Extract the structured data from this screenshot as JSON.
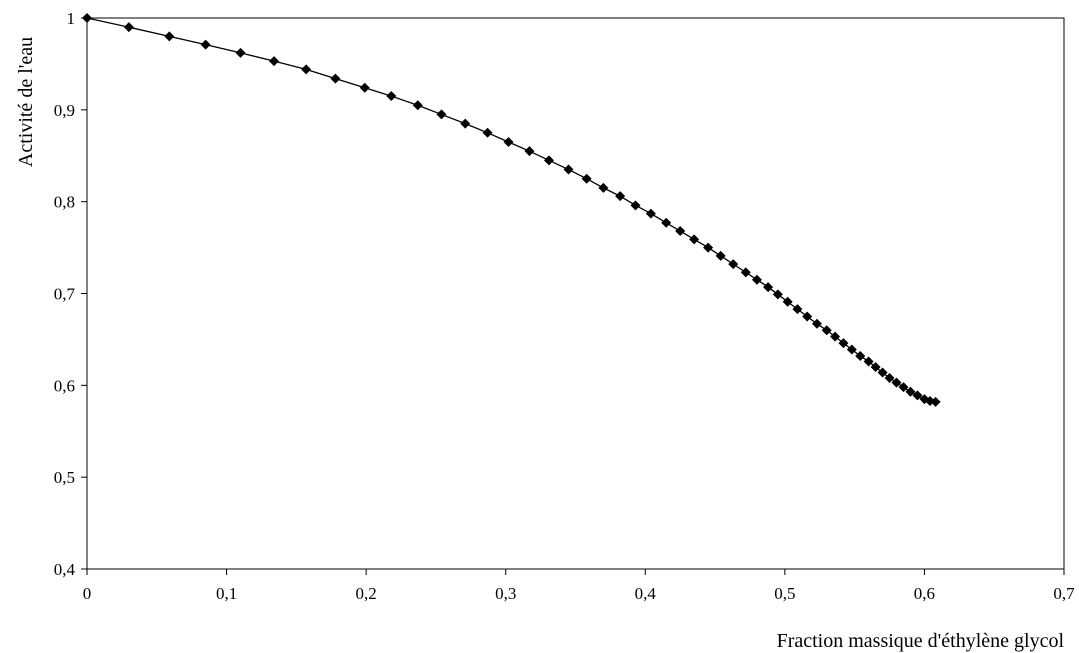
{
  "chart_data": {
    "type": "line",
    "title": "",
    "xlabel": "Fraction massique d'éthylène glycol",
    "ylabel": "Activité de l'eau",
    "xlim": [
      0,
      0.7
    ],
    "ylim": [
      0.4,
      1
    ],
    "x_ticks": [
      "0",
      "0,1",
      "0,2",
      "0,3",
      "0,4",
      "0,5",
      "0,6",
      "0,7"
    ],
    "y_ticks": [
      "0,4",
      "0,5",
      "0,6",
      "0,7",
      "0,8",
      "0,9",
      "1"
    ],
    "grid": false,
    "legend": "none",
    "marker": "diamond",
    "series": [
      {
        "x": [
          0,
          0.03,
          0.059,
          0.085,
          0.11,
          0.134,
          0.157,
          0.178,
          0.199,
          0.218,
          0.237,
          0.254,
          0.271,
          0.287,
          0.302,
          0.317,
          0.331,
          0.345,
          0.358,
          0.37,
          0.382,
          0.393,
          0.404,
          0.415,
          0.425,
          0.435,
          0.445,
          0.454,
          0.463,
          0.472,
          0.48,
          0.488,
          0.495,
          0.502,
          0.509,
          0.516,
          0.523,
          0.53,
          0.536,
          0.542,
          0.548,
          0.554,
          0.56,
          0.565,
          0.57,
          0.575,
          0.58,
          0.585,
          0.59,
          0.595,
          0.6,
          0.604,
          0.608
        ],
        "y": [
          1.0,
          0.99,
          0.98,
          0.971,
          0.962,
          0.953,
          0.944,
          0.934,
          0.924,
          0.915,
          0.905,
          0.895,
          0.885,
          0.875,
          0.865,
          0.855,
          0.845,
          0.835,
          0.825,
          0.815,
          0.806,
          0.796,
          0.787,
          0.777,
          0.768,
          0.759,
          0.75,
          0.741,
          0.732,
          0.723,
          0.715,
          0.707,
          0.699,
          0.691,
          0.683,
          0.675,
          0.667,
          0.66,
          0.653,
          0.646,
          0.639,
          0.632,
          0.626,
          0.62,
          0.614,
          0.608,
          0.603,
          0.598,
          0.593,
          0.589,
          0.585,
          0.583,
          0.582
        ]
      }
    ],
    "colors": {
      "line": "#000000",
      "marker": "#000000",
      "axis": "#000000"
    }
  }
}
